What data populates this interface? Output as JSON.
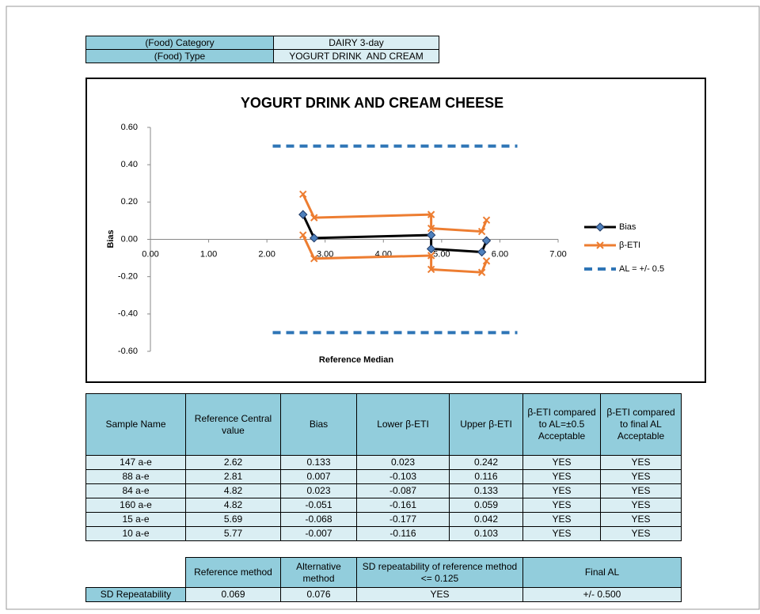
{
  "info": {
    "rows": [
      [
        "(Food) Category",
        "DAIRY 3-day"
      ],
      [
        "(Food) Type",
        "YOGURT DRINK  AND CREAM"
      ]
    ]
  },
  "chart_data": {
    "type": "line",
    "title": "YOGURT DRINK  AND CREAM CHEESE",
    "xlabel": "Reference Median",
    "ylabel": "Bias",
    "x": [
      2.62,
      2.81,
      4.82,
      4.82,
      5.69,
      5.77
    ],
    "series": [
      {
        "name": "Bias",
        "color": "#000000",
        "marker": "diamond",
        "values": [
          0.133,
          0.007,
          0.023,
          -0.051,
          -0.068,
          -0.007
        ]
      },
      {
        "name": "β-ETI",
        "color": "#ed7d31",
        "marker": "x",
        "upper": [
          0.242,
          0.116,
          0.133,
          0.059,
          0.042,
          0.103
        ],
        "lower": [
          0.023,
          -0.103,
          -0.087,
          -0.161,
          -0.177,
          -0.116
        ]
      },
      {
        "name": "AL = +/- 0.5",
        "color": "#2e75b6",
        "dashed": true,
        "x": [
          2.1,
          6.3
        ],
        "upper": [
          0.5,
          0.5
        ],
        "lower": [
          -0.5,
          -0.5
        ]
      }
    ],
    "xlim": [
      0,
      7
    ],
    "xticks": [
      {
        "value": 0,
        "label": "0.00"
      },
      {
        "value": 1,
        "label": "1.00"
      },
      {
        "value": 2,
        "label": "2.00"
      },
      {
        "value": 3,
        "label": "3.00"
      },
      {
        "value": 4,
        "label": "4.00"
      },
      {
        "value": 5,
        "label": "5.00"
      },
      {
        "value": 6,
        "label": "6.00"
      },
      {
        "value": 7,
        "label": "7.00"
      }
    ],
    "ylim": [
      -0.6,
      0.6
    ],
    "yticks": [
      {
        "value": -0.6,
        "label": "-0.60"
      },
      {
        "value": -0.4,
        "label": "-0.40"
      },
      {
        "value": -0.2,
        "label": "-0.20"
      },
      {
        "value": 0,
        "label": "0.00"
      },
      {
        "value": 0.2,
        "label": "0.20"
      },
      {
        "value": 0.4,
        "label": "0.40"
      },
      {
        "value": 0.6,
        "label": "0.60"
      }
    ],
    "grid": false,
    "legend": "right"
  },
  "results_table": {
    "header": [
      "Sample Name",
      "Reference Central value",
      "Bias",
      "Lower β-ETI",
      "Upper β-ETI",
      "β-ETI compared to AL=±0.5 Acceptable",
      "β-ETI compared to final AL Acceptable"
    ],
    "rows": [
      [
        "147 a-e",
        "2.62",
        "0.133",
        "0.023",
        "0.242",
        "YES",
        "YES"
      ],
      [
        "88 a-e",
        "2.81",
        "0.007",
        "-0.103",
        "0.116",
        "YES",
        "YES"
      ],
      [
        "84 a-e",
        "4.82",
        "0.023",
        "-0.087",
        "0.133",
        "YES",
        "YES"
      ],
      [
        "160 a-e",
        "4.82",
        "-0.051",
        "-0.161",
        "0.059",
        "YES",
        "YES"
      ],
      [
        "15 a-e",
        "5.69",
        "-0.068",
        "-0.177",
        "0.042",
        "YES",
        "YES"
      ],
      [
        "10 a-e",
        "5.77",
        "-0.007",
        "-0.116",
        "0.103",
        "YES",
        "YES"
      ]
    ]
  },
  "repeatability_table": {
    "header": [
      "Reference method",
      "Alternative method",
      "SD repeatability of reference method <= 0.125",
      "Final AL"
    ],
    "row": [
      "SD Repeatability",
      "0.069",
      "0.076",
      "YES",
      "+/- 0.500"
    ]
  }
}
